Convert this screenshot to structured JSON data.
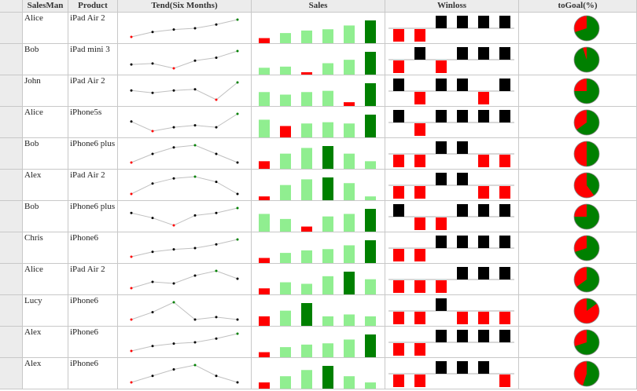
{
  "headers": {
    "salesman": "SalesMan",
    "product": "Product",
    "trend": "Tend(Six Months)",
    "sales": "Sales",
    "winloss": "Winloss",
    "togoal": "toGoal(%)"
  },
  "colors": {
    "line": "#c0c0c0",
    "point": "#000000",
    "high": "#008000",
    "low": "#ff0000",
    "bar": "#90ee90",
    "bar_high": "#008000",
    "bar_low": "#ff0000",
    "win": "#000000",
    "loss": "#ff0000",
    "pie_goal": "#008000",
    "pie_rest": "#ff0000"
  },
  "chart_data": {
    "type": "table",
    "rows": [
      {
        "salesman": "Alice",
        "product": "iPad Air 2",
        "trend": [
          2,
          4,
          5,
          5.5,
          7,
          9
        ],
        "sales": [
          2,
          4,
          5,
          5.5,
          7,
          9
        ],
        "winloss": [
          -1,
          -1,
          1,
          1,
          1,
          1
        ],
        "togoal": 0.7
      },
      {
        "salesman": "Bob",
        "product": "iPad mini 3",
        "trend": [
          3,
          3.5,
          1,
          5,
          6.5,
          10
        ],
        "sales": [
          3,
          3.5,
          1,
          5,
          6.5,
          10
        ],
        "winloss": [
          -1,
          1,
          -1,
          1,
          1,
          1
        ],
        "togoal": 0.95
      },
      {
        "salesman": "John",
        "product": "iPad Air 2",
        "trend": [
          5.5,
          4.5,
          5.5,
          6,
          1.5,
          9
        ],
        "sales": [
          5.5,
          4.5,
          5.5,
          6,
          1.5,
          9
        ],
        "winloss": [
          1,
          -1,
          1,
          1,
          -1,
          1
        ],
        "togoal": 0.75
      },
      {
        "salesman": "Alice",
        "product": "iPhone5s",
        "trend": [
          7,
          4.5,
          5.5,
          6,
          5.5,
          9
        ],
        "sales": [
          7,
          4.5,
          5.5,
          6,
          5.5,
          9
        ],
        "winloss": [
          1,
          -1,
          1,
          1,
          1,
          1
        ],
        "togoal": 0.65
      },
      {
        "salesman": "Bob",
        "product": "iPhone6 plus",
        "trend": [
          2,
          4,
          5.5,
          6,
          4,
          2
        ],
        "sales": [
          2,
          4,
          5.5,
          6,
          4,
          2
        ],
        "winloss": [
          -1,
          -1,
          1,
          1,
          -1,
          -1
        ],
        "togoal": 0.5
      },
      {
        "salesman": "Alex",
        "product": "iPad Air 2",
        "trend": [
          1,
          4,
          5.5,
          6,
          4.5,
          1
        ],
        "sales": [
          1,
          4,
          5.5,
          6,
          4.5,
          1
        ],
        "winloss": [
          -1,
          -1,
          1,
          1,
          -1,
          -1
        ],
        "togoal": 0.4
      },
      {
        "salesman": "Bob",
        "product": "iPhone6 plus",
        "trend": [
          7,
          5,
          2,
          6,
          7,
          9
        ],
        "sales": [
          7,
          5,
          2,
          6,
          7,
          9
        ],
        "winloss": [
          1,
          -1,
          -1,
          1,
          1,
          1
        ],
        "togoal": 0.75
      },
      {
        "salesman": "Chris",
        "product": "iPhone6",
        "trend": [
          2,
          4,
          5,
          5.5,
          7,
          9
        ],
        "sales": [
          2,
          4,
          5,
          5.5,
          7,
          9
        ],
        "winloss": [
          -1,
          -1,
          1,
          1,
          1,
          1
        ],
        "togoal": 0.7
      },
      {
        "salesman": "Alice",
        "product": "iPad Air 2",
        "trend": [
          2,
          4,
          3.5,
          6,
          7.5,
          5
        ],
        "sales": [
          2,
          4,
          3.5,
          6,
          7.5,
          5
        ],
        "winloss": [
          -1,
          -1,
          -1,
          1,
          1,
          1
        ],
        "togoal": 0.65
      },
      {
        "salesman": "Lucy",
        "product": "iPhone6",
        "trend": [
          2.5,
          4,
          6,
          2.5,
          3,
          2.5
        ],
        "sales": [
          2.5,
          4,
          6,
          2.5,
          3,
          2.5
        ],
        "winloss": [
          -1,
          -1,
          1,
          -1,
          -1,
          -1
        ],
        "togoal": 0.15
      },
      {
        "salesman": "Alex",
        "product": "iPhone6",
        "trend": [
          2,
          4,
          5,
          5.5,
          7,
          9
        ],
        "sales": [
          2,
          4,
          5,
          5.5,
          7,
          9
        ],
        "winloss": [
          -1,
          -1,
          1,
          1,
          1,
          1
        ],
        "togoal": 0.7
      },
      {
        "salesman": "Alex",
        "product": "iPhone6",
        "trend": [
          1.5,
          3,
          4.5,
          5.5,
          3,
          1.5
        ],
        "sales": [
          1.5,
          3,
          4.5,
          5.5,
          3,
          1.5
        ],
        "winloss": [
          -1,
          -1,
          1,
          1,
          1,
          -1
        ],
        "togoal": 0.55
      }
    ]
  }
}
